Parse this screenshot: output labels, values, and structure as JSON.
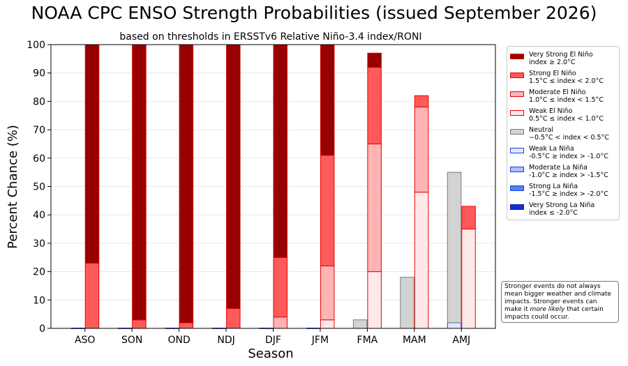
{
  "chart_data": {
    "type": "bar",
    "title": "NOAA CPC ENSO Strength Probabilities (issued September 2026)",
    "subtitle": "based on thresholds in ERSSTv6 Relative Niño-3.4 index/RONI",
    "xlabel": "Season",
    "ylabel": "Percent Chance (%)",
    "ylim": [
      0,
      100
    ],
    "yticks": [
      "0",
      "10",
      "20",
      "30",
      "40",
      "50",
      "60",
      "70",
      "80",
      "90",
      "100"
    ],
    "categories": [
      "ASO",
      "SON",
      "OND",
      "NDJ",
      "DJF",
      "JFM",
      "FMA",
      "MAM",
      "AMJ"
    ],
    "grid": true,
    "legend_position": "right",
    "groups": [
      {
        "name": "La Niña / Neutral",
        "series": [
          {
            "name": "Very Strong La Niña",
            "values": [
              0,
              0,
              0,
              0,
              0,
              0,
              0,
              0,
              0
            ]
          },
          {
            "name": "Strong La Niña",
            "values": [
              0,
              0,
              0,
              0,
              0,
              0,
              0,
              0,
              0
            ]
          },
          {
            "name": "Moderate La Niña",
            "values": [
              0,
              0,
              0,
              0,
              0,
              0,
              0,
              0,
              0
            ]
          },
          {
            "name": "Weak La Niña",
            "values": [
              0,
              0,
              0,
              0,
              0,
              0,
              0,
              0,
              2
            ]
          },
          {
            "name": "Neutral",
            "values": [
              0,
              0,
              0,
              0,
              0,
              0,
              3,
              18,
              53
            ]
          }
        ]
      },
      {
        "name": "El Niño",
        "series": [
          {
            "name": "Weak El Niño",
            "values": [
              0,
              0,
              0,
              0,
              0,
              3,
              20,
              48,
              35
            ]
          },
          {
            "name": "Moderate El Niño",
            "values": [
              0,
              0,
              0,
              0,
              4,
              19,
              45,
              30,
              0
            ]
          },
          {
            "name": "Strong El Niño",
            "values": [
              23,
              3,
              2,
              7,
              21,
              39,
              27,
              4,
              8
            ]
          },
          {
            "name": "Very Strong El Niño",
            "values": [
              77,
              97,
              98,
              93,
              75,
              39,
              5,
              0,
              0
            ]
          }
        ]
      }
    ],
    "colors": {
      "Very Strong El Niño": {
        "fill": "#990000",
        "edge": "#cc0000"
      },
      "Strong El Niño": {
        "fill": "#ff5a5a",
        "edge": "#e60000"
      },
      "Moderate El Niño": {
        "fill": "#ffb3b3",
        "edge": "#e60000"
      },
      "Weak El Niño": {
        "fill": "#ffe8e8",
        "edge": "#e60000"
      },
      "Neutral": {
        "fill": "#d3d3d3",
        "edge": "#7a7a7a"
      },
      "Weak La Niña": {
        "fill": "#dfe8ff",
        "edge": "#1f3fd6"
      },
      "Moderate La Niña": {
        "fill": "#a8c1f5",
        "edge": "#1f3fd6"
      },
      "Strong La Niña": {
        "fill": "#4f86f2",
        "edge": "#1f3fd6"
      },
      "Very Strong La Niña": {
        "fill": "#1131d6",
        "edge": "#0a1fa0"
      }
    },
    "legend": [
      {
        "series": "Very Strong El Niño",
        "line1": "Very Strong El Niño",
        "line2": "index ≥ 2.0°C"
      },
      {
        "series": "Strong El Niño",
        "line1": "Strong El Niño",
        "line2": "1.5°C ≤ index < 2.0°C"
      },
      {
        "series": "Moderate El Niño",
        "line1": "Moderate El Niño",
        "line2": "1.0°C ≤ index < 1.5°C"
      },
      {
        "series": "Weak El Niño",
        "line1": "Weak El Niño",
        "line2": "0.5°C ≤ index < 1.0°C"
      },
      {
        "series": "Neutral",
        "line1": "Neutral",
        "line2": "−0.5°C < index < 0.5°C"
      },
      {
        "series": "Weak La Niña",
        "line1": "Weak La Niña",
        "line2": "-0.5°C ≥ index > -1.0°C"
      },
      {
        "series": "Moderate La Niña",
        "line1": "Moderate La Niña",
        "line2": "-1.0°C ≥ index > -1.5°C"
      },
      {
        "series": "Strong La Niña",
        "line1": "Strong La Niña",
        "line2": "-1.5°C ≥ index > -2.0°C"
      },
      {
        "series": "Very Strong La Niña",
        "line1": "Very Strong La Niña",
        "line2": "index ≤ -2.0°C"
      }
    ]
  },
  "note": {
    "before": "Stronger events do not always mean bigger weather and climate impacts. Stronger events can make it ",
    "emphasis": "more likely",
    "after": " that certain impacts could occur."
  }
}
